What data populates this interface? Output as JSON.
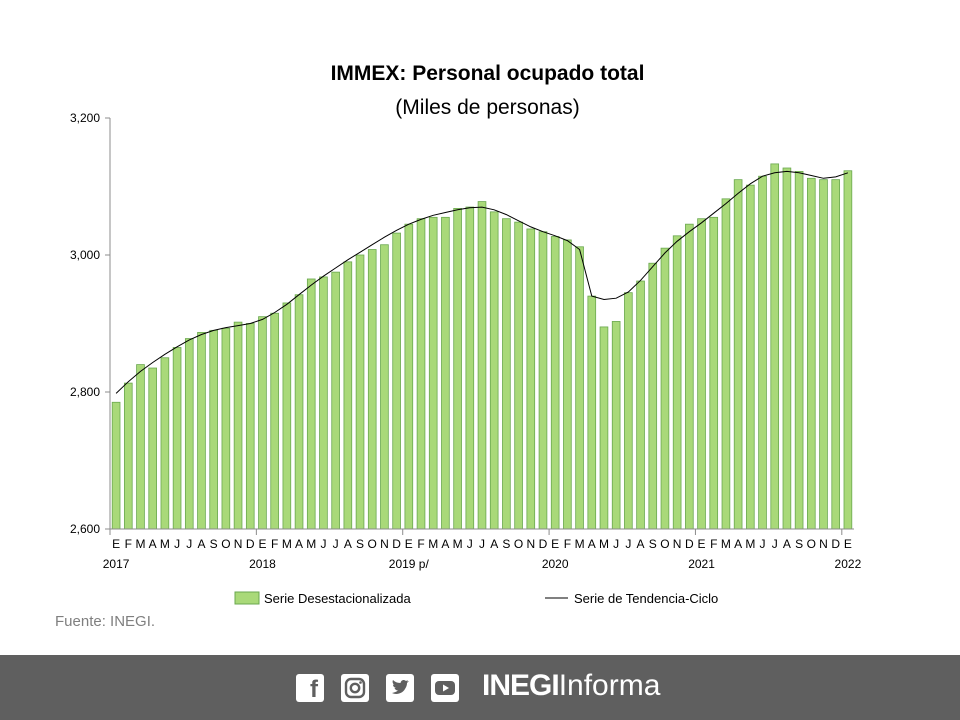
{
  "page": {
    "source": "Fuente: INEGI.",
    "brand_bold": "INEGI",
    "brand_light": "Informa",
    "social_icons": [
      "facebook-icon",
      "instagram-icon",
      "twitter-icon",
      "youtube-icon"
    ]
  },
  "chart_data": {
    "type": "bar",
    "title": "IMMEX: Personal ocupado total",
    "subtitle": "(Miles de personas)",
    "xlabel": "",
    "ylabel": "",
    "ylim": [
      2600,
      3200
    ],
    "yticks": [
      2600,
      2800,
      3000,
      3200
    ],
    "ytick_labels": [
      "2,600",
      "2,800",
      "3,000",
      "3,200"
    ],
    "grid": false,
    "legend_position": "bottom",
    "colors": {
      "bars": "#a9d979",
      "bar_edge": "#6aa84f",
      "trend": "#000000"
    },
    "categories": [
      "E",
      "F",
      "M",
      "A",
      "M",
      "J",
      "J",
      "A",
      "S",
      "O",
      "N",
      "D",
      "E",
      "F",
      "M",
      "A",
      "M",
      "J",
      "J",
      "A",
      "S",
      "O",
      "N",
      "D",
      "E",
      "F",
      "M",
      "A",
      "M",
      "J",
      "J",
      "A",
      "S",
      "O",
      "N",
      "D",
      "E",
      "F",
      "M",
      "A",
      "M",
      "J",
      "J",
      "A",
      "S",
      "O",
      "N",
      "D",
      "E",
      "F",
      "M",
      "A",
      "M",
      "J",
      "J",
      "A",
      "S",
      "O",
      "N",
      "D",
      "E"
    ],
    "year_labels": [
      {
        "index": 0,
        "label": "2017"
      },
      {
        "index": 12,
        "label": "2018"
      },
      {
        "index": 24,
        "label": "2019 p/"
      },
      {
        "index": 36,
        "label": "2020"
      },
      {
        "index": 48,
        "label": "2021"
      },
      {
        "index": 60,
        "label": "2022"
      }
    ],
    "series": [
      {
        "name": "Serie Desestacionalizada",
        "kind": "bar",
        "values": [
          2785,
          2813,
          2840,
          2835,
          2850,
          2865,
          2878,
          2887,
          2890,
          2893,
          2902,
          2900,
          2910,
          2915,
          2930,
          2942,
          2965,
          2968,
          2975,
          2990,
          3000,
          3008,
          3015,
          3032,
          3045,
          3053,
          3055,
          3055,
          3068,
          3070,
          3078,
          3063,
          3053,
          3048,
          3038,
          3034,
          3027,
          3022,
          3012,
          2940,
          2895,
          2903,
          2945,
          2962,
          2988,
          3010,
          3028,
          3045,
          3053,
          3055,
          3082,
          3110,
          3102,
          3115,
          3133,
          3127,
          3122,
          3112,
          3110,
          3110,
          3123
        ]
      },
      {
        "name": "Serie de Tendencia-Ciclo",
        "kind": "line",
        "values": [
          2798,
          2815,
          2830,
          2843,
          2855,
          2866,
          2876,
          2884,
          2890,
          2894,
          2897,
          2900,
          2906,
          2916,
          2928,
          2942,
          2956,
          2969,
          2981,
          2993,
          3004,
          3015,
          3026,
          3036,
          3045,
          3052,
          3058,
          3062,
          3066,
          3069,
          3070,
          3066,
          3059,
          3050,
          3041,
          3034,
          3028,
          3021,
          3008,
          2940,
          2935,
          2937,
          2946,
          2963,
          2983,
          3003,
          3020,
          3034,
          3047,
          3061,
          3075,
          3090,
          3104,
          3115,
          3120,
          3122,
          3120,
          3116,
          3112,
          3114,
          3120
        ]
      }
    ]
  }
}
